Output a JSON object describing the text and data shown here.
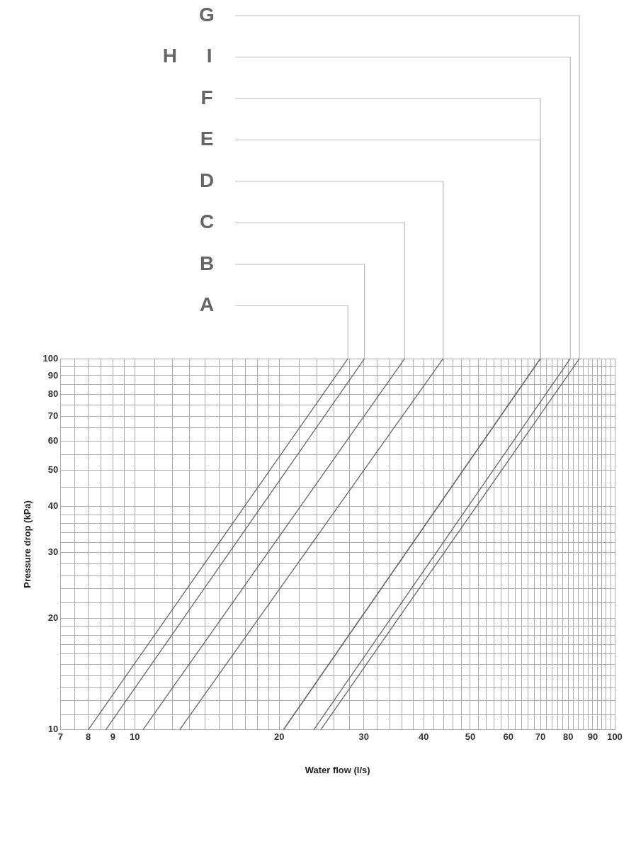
{
  "chart_data": {
    "type": "line",
    "xlabel": "Water flow (l/s)",
    "ylabel": "Pressure drop (kPa)",
    "log": "xy",
    "grid": true,
    "marker": "none",
    "line_style": "solid",
    "xlim": [
      7,
      100
    ],
    "ylim": [
      10,
      100
    ],
    "xticks": [
      7,
      {
        "value": 7.5,
        "label": null
      },
      8,
      {
        "value": 8.5,
        "label": null
      },
      9,
      {
        "value": 9.5,
        "label": null
      },
      10,
      {
        "value": 11,
        "label": null
      },
      {
        "value": 12,
        "label": null
      },
      {
        "value": 13,
        "label": null
      },
      {
        "value": 14,
        "label": null
      },
      {
        "value": 15,
        "label": null
      },
      {
        "value": 16,
        "label": null
      },
      {
        "value": 17,
        "label": null
      },
      {
        "value": 18,
        "label": null
      },
      {
        "value": 19,
        "label": null
      },
      20,
      {
        "value": 22,
        "label": null
      },
      {
        "value": 24,
        "label": null
      },
      {
        "value": 26,
        "label": null
      },
      {
        "value": 28,
        "label": null
      },
      30,
      {
        "value": 32,
        "label": null
      },
      {
        "value": 34,
        "label": null
      },
      {
        "value": 36,
        "label": null
      },
      {
        "value": 38,
        "label": null
      },
      40,
      {
        "value": 42,
        "label": null
      },
      {
        "value": 44,
        "label": null
      },
      {
        "value": 46,
        "label": null
      },
      {
        "value": 48,
        "label": null
      },
      50,
      {
        "value": 52,
        "label": null
      },
      {
        "value": 54,
        "label": null
      },
      {
        "value": 56,
        "label": null
      },
      {
        "value": 58,
        "label": null
      },
      60,
      {
        "value": 62,
        "label": null
      },
      {
        "value": 64,
        "label": null
      },
      {
        "value": 66,
        "label": null
      },
      {
        "value": 68,
        "label": null
      },
      70,
      {
        "value": 72,
        "label": null
      },
      {
        "value": 74,
        "label": null
      },
      {
        "value": 76,
        "label": null
      },
      {
        "value": 78,
        "label": null
      },
      80,
      {
        "value": 82,
        "label": null
      },
      {
        "value": 84,
        "label": null
      },
      {
        "value": 86,
        "label": null
      },
      {
        "value": 88,
        "label": null
      },
      90,
      {
        "value": 92,
        "label": null
      },
      {
        "value": 94,
        "label": null
      },
      {
        "value": 96,
        "label": null
      },
      {
        "value": 98,
        "label": null
      },
      100
    ],
    "yticks": [
      10,
      {
        "value": 11,
        "label": null
      },
      {
        "value": 12,
        "label": null
      },
      {
        "value": 13,
        "label": null
      },
      {
        "value": 14,
        "label": null
      },
      {
        "value": 15,
        "label": null
      },
      {
        "value": 16,
        "label": null
      },
      {
        "value": 17,
        "label": null
      },
      {
        "value": 18,
        "label": null
      },
      {
        "value": 19,
        "label": null
      },
      20,
      {
        "value": 22,
        "label": null
      },
      {
        "value": 24,
        "label": null
      },
      {
        "value": 26,
        "label": null
      },
      {
        "value": 28,
        "label": null
      },
      30,
      {
        "value": 32,
        "label": null
      },
      {
        "value": 34,
        "label": null
      },
      {
        "value": 36,
        "label": null
      },
      {
        "value": 38,
        "label": null
      },
      40,
      {
        "value": 45,
        "label": null
      },
      50,
      {
        "value": 55,
        "label": null
      },
      60,
      {
        "value": 65,
        "label": null
      },
      70,
      {
        "value": 75,
        "label": null
      },
      80,
      {
        "value": 85,
        "label": null
      },
      90,
      {
        "value": 95,
        "label": null
      },
      100
    ],
    "series": [
      {
        "name": "A",
        "color": "#666666",
        "x": [
          8.0,
          27.8
        ],
        "values": [
          10,
          100
        ]
      },
      {
        "name": "B",
        "color": "#666666",
        "x": [
          8.7,
          30.1
        ],
        "values": [
          10,
          100
        ]
      },
      {
        "name": "C",
        "color": "#666666",
        "x": [
          10.4,
          36.5
        ],
        "values": [
          10,
          100
        ]
      },
      {
        "name": "D",
        "color": "#666666",
        "x": [
          12.4,
          43.9
        ],
        "values": [
          10,
          100
        ]
      },
      {
        "name": "E",
        "color": "#666666",
        "x": [
          20.4,
          70
        ],
        "values": [
          10,
          100
        ]
      },
      {
        "name": "F",
        "color": "#666666",
        "x": [
          20.4,
          70
        ],
        "values": [
          10,
          100
        ]
      },
      {
        "name": "G",
        "color": "#666666",
        "x": [
          24.4,
          84.4
        ],
        "values": [
          10,
          100
        ]
      },
      {
        "name": "H I",
        "color": "#666666",
        "x": [
          23.6,
          80.8
        ],
        "values": [
          10,
          100
        ]
      }
    ]
  }
}
